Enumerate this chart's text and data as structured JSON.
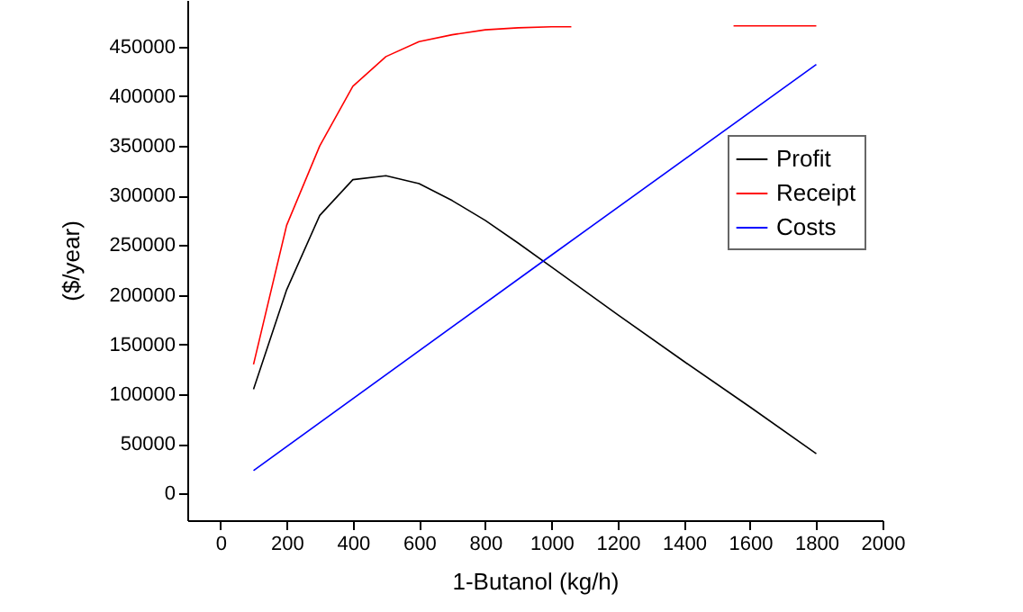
{
  "chart_data": {
    "type": "line",
    "xlabel": "1-Butanol (kg/h)",
    "ylabel": "($/year)",
    "xlim": [
      -100,
      2000
    ],
    "xticks": [
      0,
      200,
      400,
      600,
      800,
      1000,
      1200,
      1400,
      1600,
      1800,
      2000
    ],
    "ylim": [
      -27000,
      497000
    ],
    "yticks": [
      0,
      50000,
      100000,
      150000,
      200000,
      250000,
      300000,
      350000,
      400000,
      450000
    ],
    "legend": "right",
    "grid": false,
    "marker": "none",
    "line_style": "solid",
    "series": [
      {
        "name": "Profit",
        "color": "#000000",
        "x": [
          100,
          200,
          300,
          400,
          500,
          600,
          700,
          800,
          900,
          1000,
          1200,
          1400,
          1600,
          1800
        ],
        "values": [
          105000,
          205000,
          280000,
          316000,
          320000,
          312000,
          295000,
          275000,
          252000,
          228000,
          180000,
          133000,
          87000,
          40000
        ]
      },
      {
        "name": "Receipt",
        "color": "#ff0000",
        "x": [
          100,
          200,
          300,
          400,
          500,
          600,
          700,
          800,
          900,
          1000,
          1060,
          1100,
          1550,
          1800
        ],
        "values": [
          130000,
          270000,
          350000,
          410000,
          440000,
          455000,
          462000,
          467000,
          469000,
          470000,
          470000,
          null,
          471000,
          471000
        ]
      },
      {
        "name": "Costs",
        "color": "#0000ff",
        "x": [
          100,
          1000,
          1800
        ],
        "values": [
          23000,
          240000,
          432000
        ]
      }
    ]
  }
}
